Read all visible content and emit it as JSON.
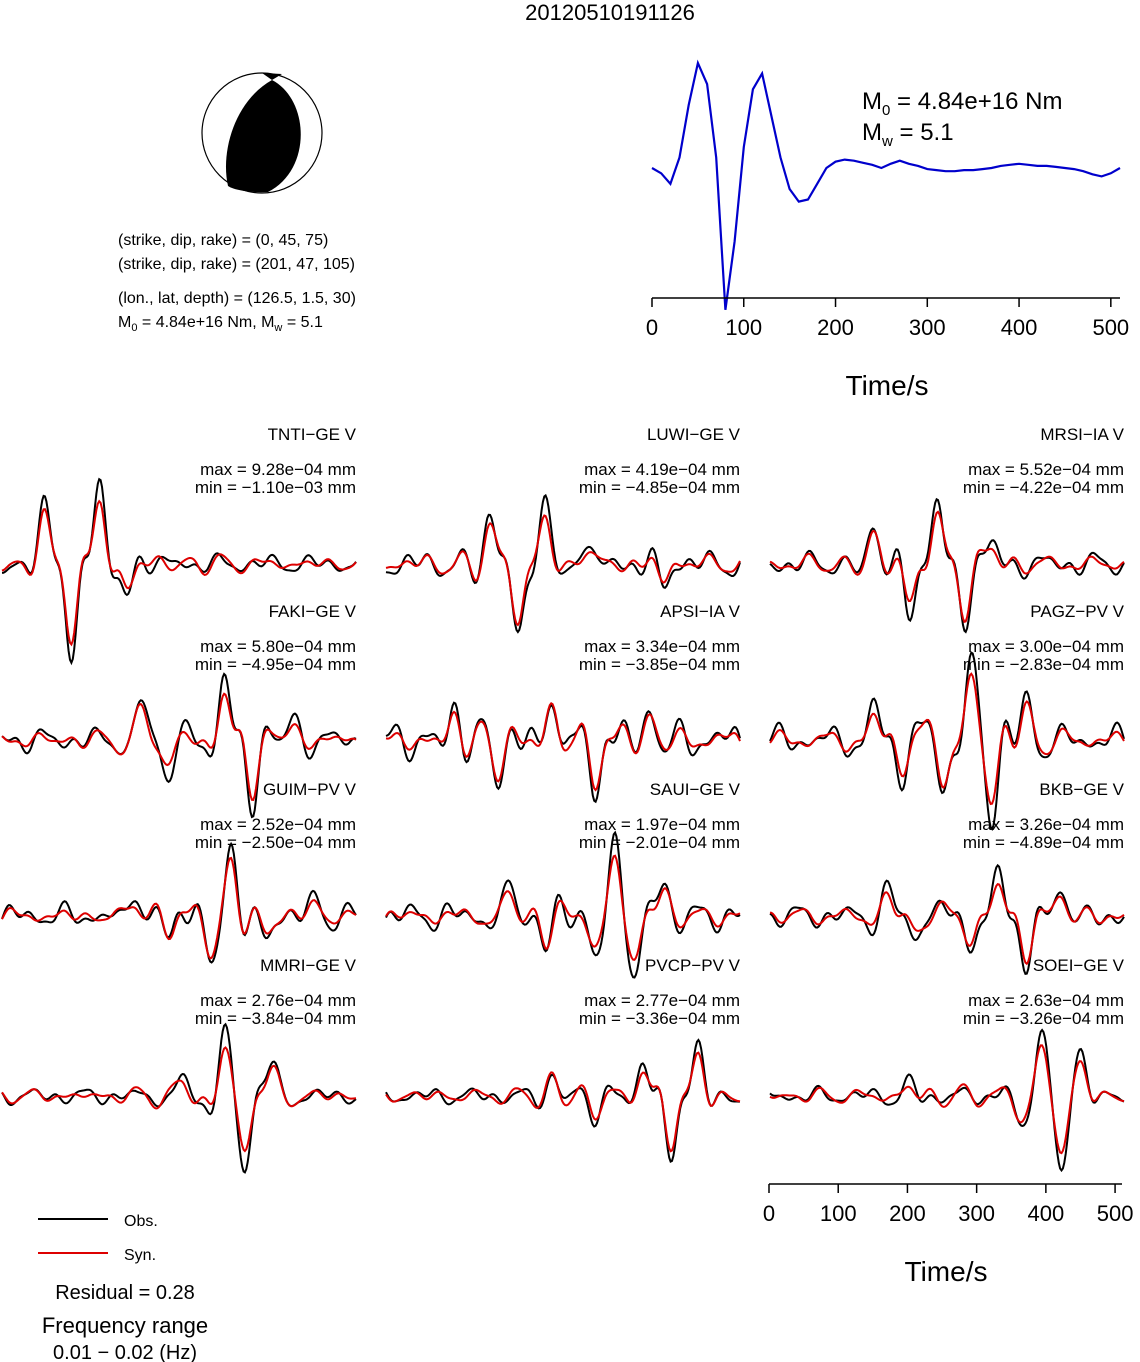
{
  "title": "20120510191126",
  "mechanism": {
    "line1": "(strike, dip, rake) = (0, 45, 75)",
    "line2": "(strike, dip, rake) = (201, 47, 105)",
    "line3": "(lon., lat, depth) = (126.5, 1.5, 30)",
    "line4_m0": "M",
    "line4_sub0": "0",
    "line4_mid": " = 4.84e+16 Nm, M",
    "line4_subw": "w",
    "line4_end": " = 5.1"
  },
  "stf": {
    "m0_label": "M",
    "m0_sub": "0",
    "m0_value": " = 4.84e+16 Nm",
    "mw_label": "M",
    "mw_sub": "w",
    "mw_value": " = 5.1",
    "xlabel": "Time/s",
    "ticks": [
      "0",
      "100",
      "200",
      "300",
      "400",
      "500"
    ]
  },
  "bottom_axis": {
    "xlabel": "Time/s",
    "ticks": [
      "0",
      "100",
      "200",
      "300",
      "400",
      "500"
    ]
  },
  "legend": {
    "obs": "Obs.",
    "syn": "Syn."
  },
  "residual": "Residual = 0.28",
  "frequency_label": "Frequency range",
  "frequency_value": "0.01 − 0.02 (Hz)",
  "colors": {
    "observed": "#000000",
    "synthetic": "#dd0000",
    "stf": "#0000cc"
  },
  "chart_data": [
    {
      "type": "line",
      "name": "source time function",
      "xlabel": "Time/s",
      "xlim": [
        0,
        510
      ],
      "x": [
        0,
        10,
        20,
        30,
        40,
        50,
        60,
        70,
        80,
        90,
        100,
        110,
        120,
        130,
        140,
        150,
        160,
        170,
        180,
        190,
        200,
        210,
        220,
        230,
        240,
        250,
        260,
        270,
        280,
        290,
        300,
        310,
        320,
        330,
        340,
        350,
        360,
        370,
        380,
        390,
        400,
        410,
        420,
        430,
        440,
        450,
        460,
        470,
        480,
        490,
        500,
        510
      ],
      "y": [
        0.0,
        -0.05,
        -0.15,
        0.1,
        0.6,
        1.0,
        0.8,
        0.1,
        -1.35,
        -0.7,
        0.2,
        0.75,
        0.9,
        0.5,
        0.1,
        -0.2,
        -0.32,
        -0.3,
        -0.15,
        0.0,
        0.06,
        0.08,
        0.07,
        0.05,
        0.03,
        0.0,
        0.04,
        0.07,
        0.04,
        0.02,
        -0.01,
        -0.02,
        -0.03,
        -0.03,
        -0.02,
        -0.02,
        -0.01,
        0.0,
        0.02,
        0.03,
        0.04,
        0.03,
        0.02,
        0.02,
        0.01,
        0.0,
        -0.01,
        -0.03,
        -0.06,
        -0.08,
        -0.05,
        0.0
      ]
    },
    {
      "type": "line",
      "name": "waveforms",
      "xlabel": "Time/s",
      "xlim": [
        0,
        510
      ],
      "stations": [
        {
          "label": "TNTI−GE V",
          "max": "max = 9.28e−04 mm",
          "min": "min = −1.10e−03 mm",
          "w": [
            [
              60,
              1.0
            ],
            [
              100,
              -1.5
            ],
            [
              140,
              1.3
            ],
            [
              180,
              -0.5
            ]
          ],
          "n": 0.08
        },
        {
          "label": "LUWI−GE V",
          "max": "max = 4.19e−04 mm",
          "min": "min = −4.85e−04 mm",
          "w": [
            [
              150,
              0.8
            ],
            [
              190,
              -1.2
            ],
            [
              230,
              1.0
            ],
            [
              290,
              0.5
            ],
            [
              400,
              -0.4
            ]
          ],
          "n": 0.12
        },
        {
          "label": "MRSI−IA V",
          "max": "max = 5.52e−04 mm",
          "min": "min = −4.22e−04 mm",
          "w": [
            [
              150,
              0.6
            ],
            [
              200,
              -0.8
            ],
            [
              240,
              1.0
            ],
            [
              280,
              -0.9
            ],
            [
              320,
              0.3
            ]
          ],
          "n": 0.1
        },
        {
          "label": "FAKI−GE V",
          "max": "max = 5.80e−04 mm",
          "min": "min = −4.95e−04 mm",
          "w": [
            [
              200,
              0.6
            ],
            [
              240,
              -0.5
            ],
            [
              320,
              1.0
            ],
            [
              360,
              -1.0
            ],
            [
              420,
              0.3
            ]
          ],
          "n": 0.1
        },
        {
          "label": "APSI−IA V",
          "max": "max = 3.34e−04 mm",
          "min": "min = −3.85e−04 mm",
          "w": [
            [
              100,
              0.5
            ],
            [
              160,
              -0.6
            ],
            [
              240,
              0.7
            ],
            [
              300,
              -0.9
            ],
            [
              380,
              0.5
            ]
          ],
          "n": 0.15
        },
        {
          "label": "PAGZ−PV V",
          "max": "max = 3.00e−04 mm",
          "min": "min = −2.83e−04 mm",
          "w": [
            [
              150,
              0.5
            ],
            [
              190,
              -0.5
            ],
            [
              250,
              -0.7
            ],
            [
              290,
              1.0
            ],
            [
              320,
              -1.0
            ],
            [
              370,
              0.6
            ]
          ],
          "n": 0.12
        },
        {
          "label": "GUIM−PV V",
          "max": "max = 2.52e−04 mm",
          "min": "min = −2.50e−04 mm",
          "w": [
            [
              190,
              0.4
            ],
            [
              240,
              -0.3
            ],
            [
              300,
              -0.7
            ],
            [
              330,
              1.0
            ],
            [
              380,
              -0.4
            ],
            [
              450,
              0.3
            ]
          ],
          "n": 0.1
        },
        {
          "label": "SAUI−GE V",
          "max": "max = 1.97e−04 mm",
          "min": "min = −2.01e−04 mm",
          "w": [
            [
              180,
              0.5
            ],
            [
              230,
              -0.5
            ],
            [
              300,
              -0.6
            ],
            [
              330,
              1.0
            ],
            [
              360,
              -0.8
            ],
            [
              400,
              0.6
            ]
          ],
          "n": 0.12
        },
        {
          "label": "BKB−GE V",
          "max": "max = 3.26e−04 mm",
          "min": "min = −4.89e−04 mm",
          "w": [
            [
              170,
              0.4
            ],
            [
              210,
              -0.3
            ],
            [
              290,
              -0.5
            ],
            [
              330,
              0.6
            ],
            [
              370,
              -0.9
            ],
            [
              420,
              0.5
            ]
          ],
          "n": 0.1
        },
        {
          "label": "MMRI−GE V",
          "max": "max = 2.76e−04 mm",
          "min": "min = −3.84e−04 mm",
          "w": [
            [
              260,
              0.3
            ],
            [
              320,
              0.8
            ],
            [
              350,
              -1.0
            ],
            [
              390,
              0.5
            ]
          ],
          "n": 0.07
        },
        {
          "label": "PVCP−PV V",
          "max": "max = 2.77e−04 mm",
          "min": "min = −3.36e−04 mm",
          "w": [
            [
              240,
              0.3
            ],
            [
              300,
              -0.3
            ],
            [
              370,
              0.5
            ],
            [
              410,
              -1.0
            ],
            [
              450,
              0.8
            ]
          ],
          "n": 0.07
        },
        {
          "label": "SOEI−GE V",
          "max": "max = 2.63e−04 mm",
          "min": "min = −3.26e−04 mm",
          "w": [
            [
              200,
              0.2
            ],
            [
              360,
              -0.4
            ],
            [
              390,
              0.8
            ],
            [
              420,
              -1.0
            ],
            [
              450,
              0.6
            ]
          ],
          "n": 0.07
        }
      ]
    }
  ]
}
